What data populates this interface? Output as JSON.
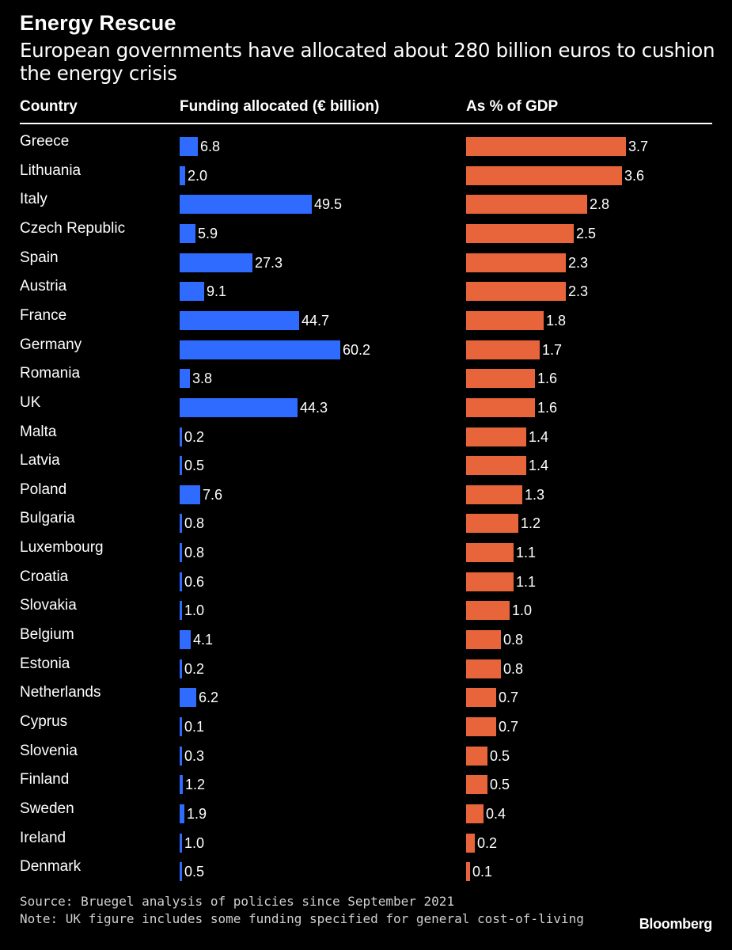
{
  "title": "Energy Rescue",
  "subtitle": "European governments have allocated about 280 billion euros to cushion the energy crisis",
  "headers": {
    "country": "Country",
    "funding": "Funding allocated (€ billion)",
    "gdp": "As % of GDP"
  },
  "colors": {
    "funding_bar": "#2f6bff",
    "gdp_bar": "#e8643a",
    "background": "#000000"
  },
  "chart_data": {
    "type": "bar",
    "orientation": "horizontal",
    "title": "Energy Rescue",
    "subtitle": "European governments have allocated about 280 billion euros to cushion the energy crisis",
    "categories": [
      "Greece",
      "Lithuania",
      "Italy",
      "Czech Republic",
      "Spain",
      "Austria",
      "France",
      "Germany",
      "Romania",
      "UK",
      "Malta",
      "Latvia",
      "Poland",
      "Bulgaria",
      "Luxembourg",
      "Croatia",
      "Slovakia",
      "Belgium",
      "Estonia",
      "Netherlands",
      "Cyprus",
      "Slovenia",
      "Finland",
      "Sweden",
      "Ireland",
      "Denmark"
    ],
    "series": [
      {
        "name": "Funding allocated (€ billion)",
        "labels": [
          "6.8",
          "2.0",
          "49.5",
          "5.9",
          "27.3",
          "9.1",
          "44.7",
          "60.2",
          "3.8",
          "44.3",
          "0.2",
          "0.5",
          "7.6",
          "0.8",
          "0.8",
          "0.6",
          "1.0",
          "4.1",
          "0.2",
          "6.2",
          "0.1",
          "0.3",
          "1.2",
          "1.9",
          "1.0",
          "0.5"
        ],
        "values": [
          6.8,
          2.0,
          49.5,
          5.9,
          27.3,
          9.1,
          44.7,
          60.2,
          3.8,
          44.3,
          0.2,
          0.5,
          7.6,
          0.8,
          0.8,
          0.6,
          1.0,
          4.1,
          0.2,
          6.2,
          0.1,
          0.3,
          1.2,
          1.9,
          1.0,
          0.5
        ]
      },
      {
        "name": "As % of GDP",
        "labels": [
          "3.7",
          "3.6",
          "2.8",
          "2.5",
          "2.3",
          "2.3",
          "1.8",
          "1.7",
          "1.6",
          "1.6",
          "1.4",
          "1.4",
          "1.3",
          "1.2",
          "1.1",
          "1.1",
          "1.0",
          "0.8",
          "0.8",
          "0.7",
          "0.7",
          "0.5",
          "0.5",
          "0.4",
          "0.2",
          "0.1"
        ],
        "values": [
          3.7,
          3.6,
          2.8,
          2.5,
          2.3,
          2.3,
          1.8,
          1.7,
          1.6,
          1.6,
          1.4,
          1.4,
          1.3,
          1.2,
          1.1,
          1.1,
          1.0,
          0.8,
          0.8,
          0.7,
          0.7,
          0.5,
          0.5,
          0.4,
          0.2,
          0.1
        ]
      }
    ],
    "xlim_funding": [
      0,
      60.2
    ],
    "xlim_gdp": [
      0,
      3.7
    ],
    "grid": false,
    "legend": "none"
  },
  "footer": {
    "source": "Source: Bruegel analysis of policies since September 2021",
    "note": "Note: UK figure includes some funding specified for general cost-of-living",
    "logo": "Bloomberg"
  }
}
